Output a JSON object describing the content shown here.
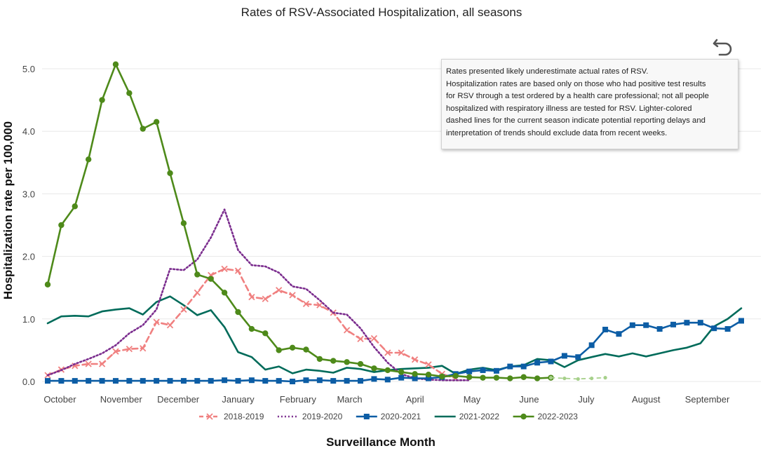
{
  "chart_data": {
    "type": "line",
    "title": "Rates of RSV-Associated Hospitalization, all seasons",
    "xlabel": "Surveillance Month",
    "ylabel": "Hospitalization rate per 100,000",
    "ylim": [
      0,
      5.5
    ],
    "y_ticks": [
      "0.0",
      "1.0",
      "2.0",
      "3.0",
      "4.0",
      "5.0"
    ],
    "x_tick_labels": [
      "October",
      "November",
      "December",
      "January",
      "February",
      "March",
      "April",
      "May",
      "June",
      "July",
      "August",
      "September"
    ],
    "x_unit": "surveillance week index (0 = first week of October)",
    "series": [
      {
        "name": "2018-2019",
        "color": "#f08080",
        "style": "dashed-cross",
        "x": [
          0,
          1,
          2,
          3,
          4,
          5,
          6,
          7,
          8,
          9,
          10,
          11,
          12,
          13,
          14,
          15,
          16,
          17,
          18,
          19,
          20,
          21,
          22,
          23,
          24,
          25,
          26,
          27,
          28,
          29,
          30
        ],
        "values": [
          0.1,
          0.19,
          0.25,
          0.28,
          0.28,
          0.48,
          0.52,
          0.53,
          0.95,
          0.9,
          1.15,
          1.42,
          1.7,
          1.8,
          1.77,
          1.35,
          1.32,
          1.46,
          1.38,
          1.24,
          1.22,
          1.1,
          0.82,
          0.68,
          0.69,
          0.46,
          0.46,
          0.35,
          0.27,
          0.12,
          0.05
        ]
      },
      {
        "name": "2019-2020",
        "color": "#7b2d8e",
        "style": "dotted",
        "x": [
          0,
          1,
          2,
          3,
          4,
          5,
          6,
          7,
          8,
          9,
          10,
          11,
          12,
          13,
          14,
          15,
          16,
          17,
          18,
          19,
          20,
          21,
          22,
          23,
          24,
          25,
          26,
          27,
          28,
          29,
          30,
          31
        ],
        "values": [
          0.1,
          0.18,
          0.28,
          0.36,
          0.45,
          0.58,
          0.77,
          0.9,
          1.15,
          1.8,
          1.78,
          1.95,
          2.3,
          2.75,
          2.1,
          1.86,
          1.84,
          1.74,
          1.52,
          1.48,
          1.3,
          1.1,
          1.07,
          0.85,
          0.55,
          0.3,
          0.12,
          0.05,
          0.03,
          0.02,
          0.02,
          0.02
        ]
      },
      {
        "name": "2020-2021",
        "color": "#0c5da5",
        "style": "solid-square",
        "x": [
          0,
          1,
          2,
          3,
          4,
          5,
          6,
          7,
          8,
          9,
          10,
          11,
          12,
          13,
          14,
          15,
          16,
          17,
          18,
          19,
          20,
          21,
          22,
          23,
          24,
          25,
          26,
          27,
          28,
          29,
          30,
          31,
          32,
          33,
          34,
          35,
          36,
          37,
          38,
          39,
          40,
          41,
          42,
          43,
          44,
          45,
          46,
          47,
          48,
          49,
          50,
          51
        ],
        "values": [
          0.01,
          0.01,
          0.01,
          0.01,
          0.01,
          0.01,
          0.01,
          0.01,
          0.01,
          0.01,
          0.01,
          0.01,
          0.01,
          0.02,
          0.01,
          0.02,
          0.01,
          0.01,
          0.0,
          0.02,
          0.02,
          0.01,
          0.01,
          0.01,
          0.04,
          0.03,
          0.06,
          0.05,
          0.05,
          0.07,
          0.12,
          0.16,
          0.18,
          0.17,
          0.24,
          0.24,
          0.3,
          0.32,
          0.41,
          0.39,
          0.58,
          0.83,
          0.76,
          0.9,
          0.9,
          0.84,
          0.91,
          0.94,
          0.94,
          0.85,
          0.84,
          0.97
        ]
      },
      {
        "name": "2021-2022",
        "color": "#006b5a",
        "style": "solid",
        "x": [
          0,
          1,
          2,
          3,
          4,
          5,
          6,
          7,
          8,
          9,
          10,
          11,
          12,
          13,
          14,
          15,
          16,
          17,
          18,
          19,
          20,
          21,
          22,
          23,
          24,
          25,
          26,
          27,
          28,
          29,
          30,
          31,
          32,
          33,
          34,
          35,
          36,
          37,
          38,
          39,
          40,
          41,
          42,
          43,
          44,
          45,
          46,
          47,
          48,
          49,
          50,
          51
        ],
        "values": [
          0.93,
          1.04,
          1.05,
          1.04,
          1.12,
          1.15,
          1.17,
          1.07,
          1.27,
          1.36,
          1.22,
          1.06,
          1.14,
          0.87,
          0.47,
          0.39,
          0.19,
          0.24,
          0.13,
          0.19,
          0.17,
          0.14,
          0.22,
          0.2,
          0.15,
          0.18,
          0.2,
          0.21,
          0.22,
          0.25,
          0.12,
          0.19,
          0.22,
          0.18,
          0.24,
          0.26,
          0.36,
          0.34,
          0.23,
          0.34,
          0.39,
          0.44,
          0.4,
          0.45,
          0.4,
          0.45,
          0.5,
          0.54,
          0.61,
          0.88,
          1.0,
          1.17
        ]
      },
      {
        "name": "2022-2023",
        "color": "#4e8a1a",
        "style": "solid-circle",
        "x": [
          0,
          1,
          2,
          3,
          4,
          5,
          6,
          7,
          8,
          9,
          10,
          11,
          12,
          13,
          14,
          15,
          16,
          17,
          18,
          19,
          20,
          21,
          22,
          23,
          24,
          25,
          26,
          27,
          28,
          29,
          30,
          31,
          32,
          33,
          34,
          35,
          36,
          37
        ],
        "values": [
          1.55,
          2.5,
          2.8,
          3.55,
          4.5,
          5.07,
          4.61,
          4.04,
          4.15,
          3.33,
          2.53,
          1.71,
          1.64,
          1.42,
          1.11,
          0.84,
          0.77,
          0.5,
          0.54,
          0.51,
          0.36,
          0.33,
          0.31,
          0.28,
          0.21,
          0.18,
          0.15,
          0.12,
          0.11,
          0.08,
          0.09,
          0.07,
          0.06,
          0.06,
          0.05,
          0.07,
          0.05,
          0.06
        ]
      },
      {
        "name": "2022-2023 (preliminary)",
        "color": "#a6d08a",
        "style": "light-dashed-circle",
        "show_in_legend": false,
        "x": [
          37,
          38,
          39,
          40,
          41
        ],
        "values": [
          0.06,
          0.05,
          0.04,
          0.05,
          0.06
        ]
      }
    ]
  },
  "note": {
    "lines": [
      "Rates presented likely underestimate actual rates of RSV.",
      "Hospitalization rates are based only on those who had positive test results",
      "for RSV through a test ordered by a health care professional; not all people",
      "hospitalized with respiratory illness are tested for RSV. Lighter-colored",
      "dashed lines for the current season indicate potential reporting delays and",
      "interpretation of trends should exclude data from recent weeks."
    ]
  },
  "controls": {
    "undo_icon": "undo-arrow-icon"
  }
}
